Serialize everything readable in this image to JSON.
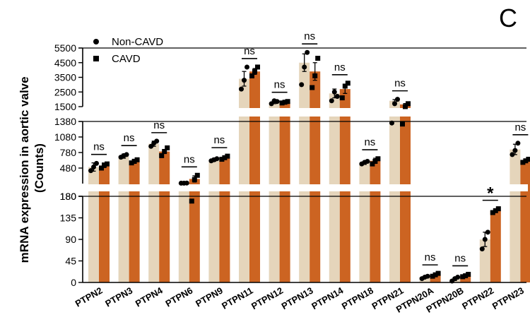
{
  "panel_label": "C",
  "chart_data": {
    "type": "bar",
    "title": "",
    "xlabel": "",
    "ylabel": "mRNA expression in aortic valve (Counts)",
    "ylabel_lines": [
      "mRNA expression in aortic valve",
      "(Counts)"
    ],
    "categories": [
      "PTPN2",
      "PTPN3",
      "PTPN4",
      "PTPN6",
      "PTPN9",
      "PTPN11",
      "PTPN12",
      "PTPN13",
      "PTPN14",
      "PTPN18",
      "PTPN21",
      "PTPN20A",
      "PTPN20B",
      "PTPN22",
      "PTPN23"
    ],
    "series": [
      {
        "name": "Non-CAVD",
        "marker": "circle",
        "color": "#e5d5bb",
        "values": [
          500,
          710,
          950,
          190,
          640,
          3400,
          1800,
          4500,
          2400,
          580,
          1900,
          11,
          7,
          90,
          840
        ],
        "errors": [
          80,
          40,
          50,
          2,
          30,
          500,
          100,
          600,
          300,
          30,
          80,
          2,
          3,
          15,
          100
        ],
        "points": [
          [
            430,
            500,
            570
          ],
          [
            690,
            720,
            740
          ],
          [
            900,
            960,
            1000
          ],
          [
            188,
            189,
            191
          ],
          [
            620,
            640,
            660
          ],
          [
            2700,
            3300,
            4200
          ],
          [
            1700,
            1900,
            1850
          ],
          [
            3000,
            4200,
            5200
          ],
          [
            1900,
            2500,
            2200
          ],
          [
            560,
            590,
            610
          ],
          [
            1350,
            1700,
            2000
          ],
          [
            8,
            11,
            13
          ],
          [
            3,
            8,
            11
          ],
          [
            70,
            90,
            105
          ],
          [
            740,
            820,
            960
          ]
        ]
      },
      {
        "name": "CAVD",
        "marker": "square",
        "color": "#cc6422",
        "values": [
          530,
          610,
          800,
          270,
          680,
          3900,
          1800,
          3900,
          2700,
          620,
          1650,
          16,
          14,
          150,
          620
        ],
        "errors": [
          40,
          40,
          40,
          60,
          30,
          200,
          80,
          600,
          300,
          50,
          60,
          3,
          3,
          3,
          30
        ],
        "points": [
          [
            480,
            540,
            560
          ],
          [
            580,
            610,
            640
          ],
          [
            720,
            800,
            870
          ],
          [
            170,
            260,
            340
          ],
          [
            650,
            680,
            710
          ],
          [
            3600,
            3900,
            4200
          ],
          [
            1750,
            1800,
            1850
          ],
          [
            2800,
            3600,
            4800
          ],
          [
            2100,
            2900,
            3100
          ],
          [
            560,
            610,
            660
          ],
          [
            1330,
            1500,
            1700
          ],
          [
            13,
            16,
            19
          ],
          [
            12,
            14,
            17
          ],
          [
            146,
            150,
            154
          ],
          [
            590,
            620,
            650
          ]
        ]
      }
    ],
    "y_segments": [
      {
        "range": [
          0,
          180
        ],
        "ticks": [
          0,
          45,
          90,
          135,
          180
        ]
      },
      {
        "range": [
          180,
          1380
        ],
        "ticks": [
          180,
          480,
          780,
          1080,
          1380
        ]
      },
      {
        "range": [
          1500,
          5500
        ],
        "ticks": [
          1500,
          2500,
          3500,
          4500,
          5500
        ]
      }
    ],
    "significance": [
      "ns",
      "ns",
      "ns",
      "ns",
      "ns",
      "ns",
      "ns",
      "ns",
      "ns",
      "ns",
      "ns",
      "ns",
      "ns",
      "*",
      "ns"
    ],
    "legend": [
      "Non-CAVD",
      "CAVD"
    ],
    "legend_position": "top-left",
    "grid": false
  }
}
